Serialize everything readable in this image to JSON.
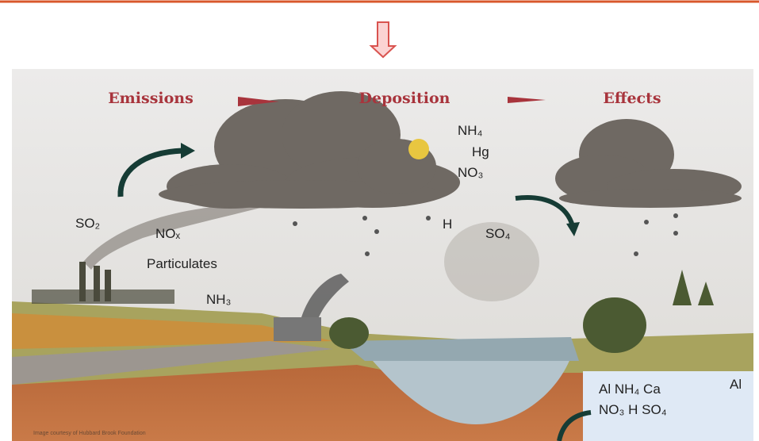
{
  "stages": [
    "Emissions",
    "Deposition",
    "Effects"
  ],
  "cloud_chemicals": [
    "NH₄",
    "Hg",
    "NO₃"
  ],
  "emissions": [
    "SO₂",
    "NOₓ",
    "Particulates",
    "NH₃"
  ],
  "rain_chemicals": [
    "H",
    "SO₄"
  ],
  "soil_label": "Al",
  "water_chemicals": [
    "Al  NH₄  Ca",
    "NO₃  H  SO₄"
  ],
  "credit": "Image courtesy of Hubbard Brook Foundation"
}
